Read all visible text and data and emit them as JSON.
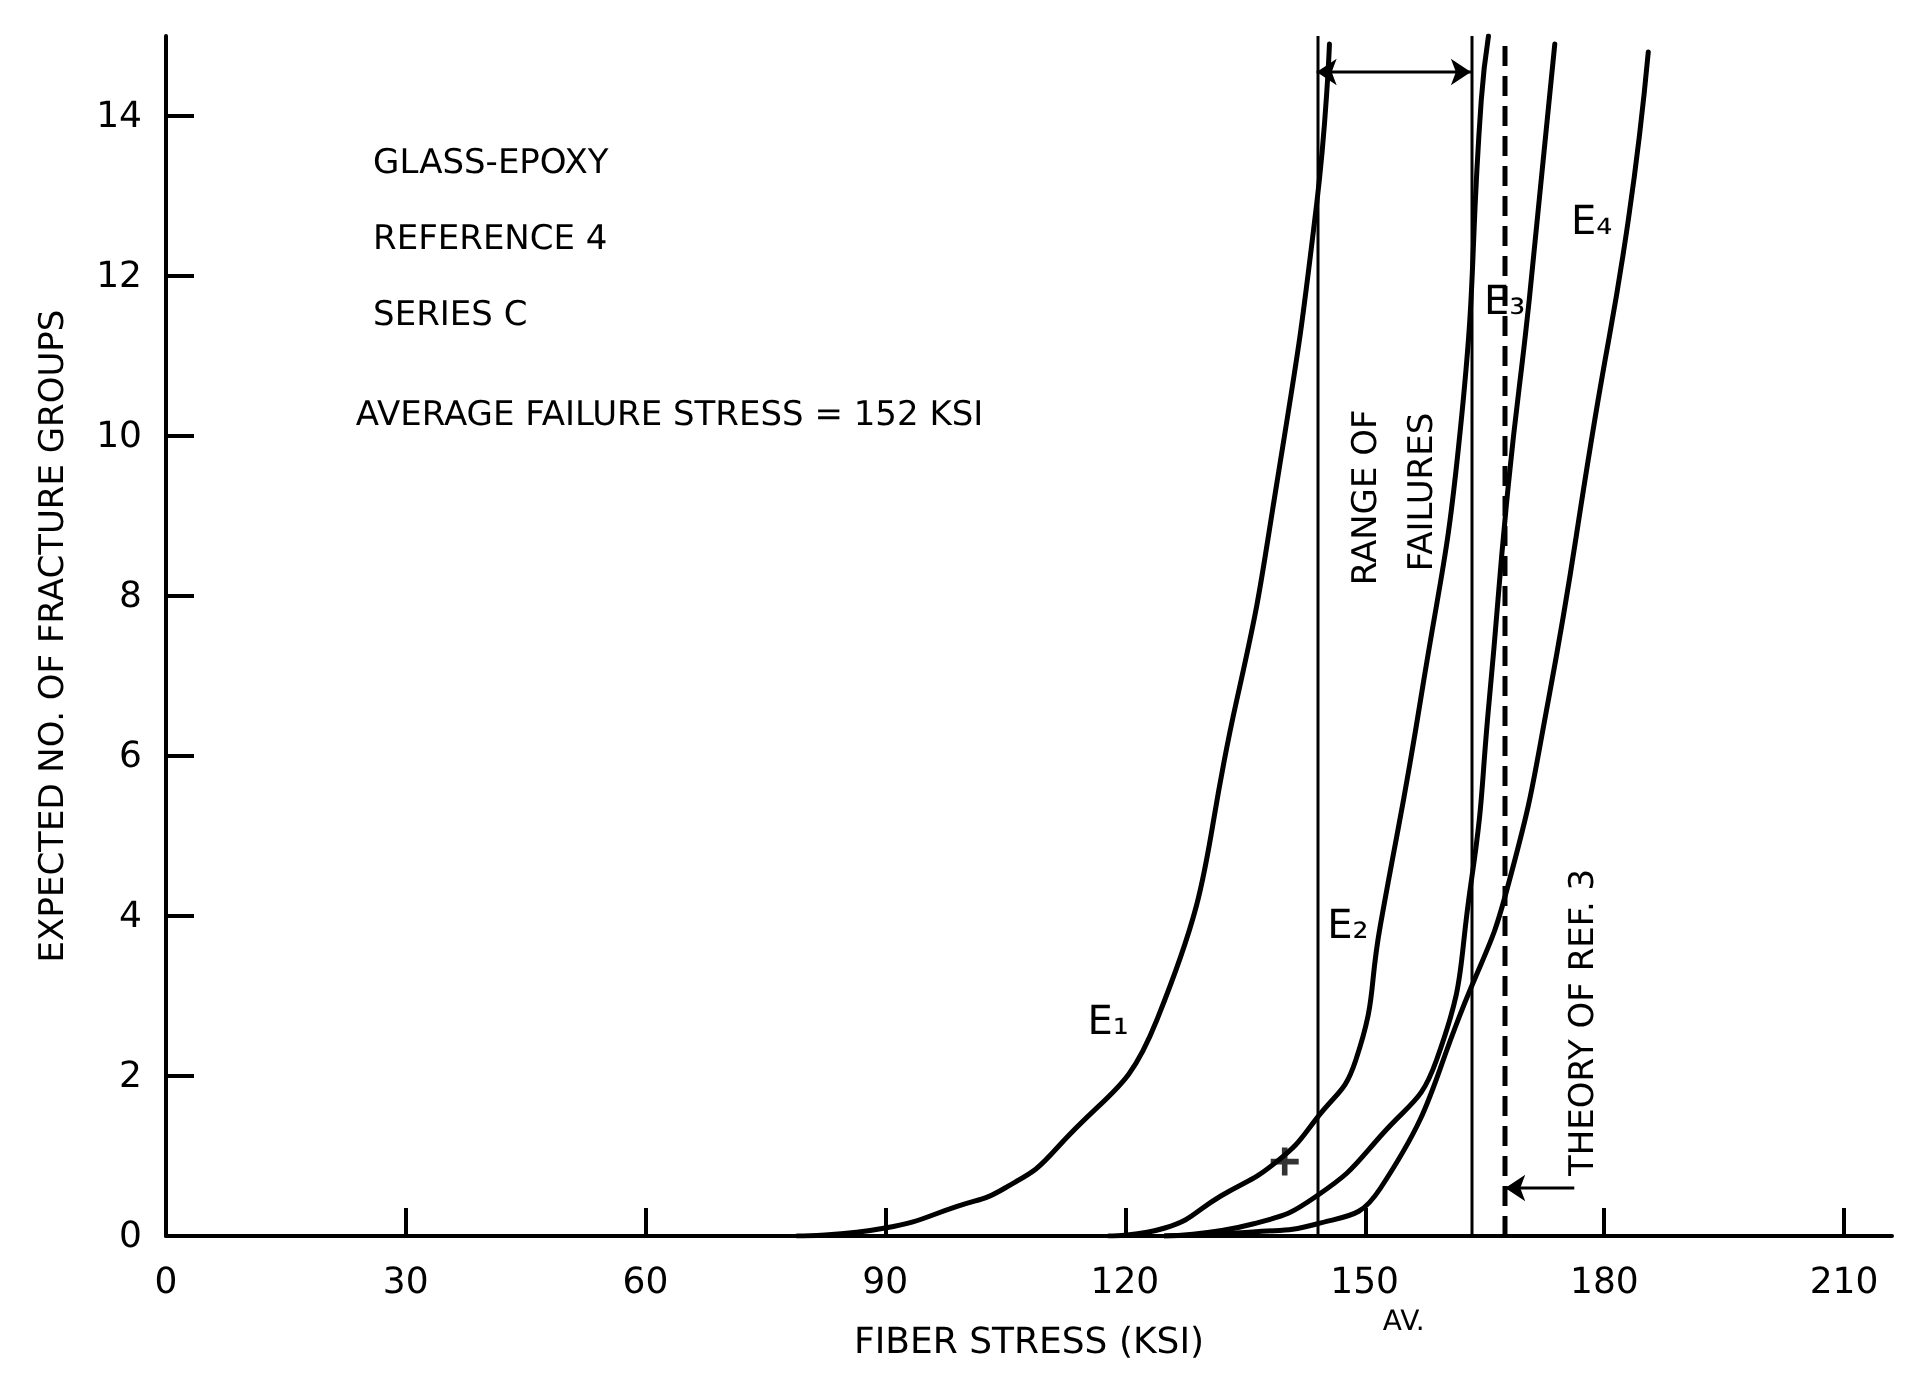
{
  "chart_data": {
    "type": "line",
    "xlabel": "FIBER STRESS (KSI)",
    "ylabel": "EXPECTED NO. OF FRACTURE GROUPS",
    "xlim": [
      0,
      216
    ],
    "xticks": [
      0,
      30,
      60,
      90,
      120,
      150,
      180,
      210
    ],
    "ylim": [
      0,
      15
    ],
    "yticks": [
      0,
      2,
      4,
      6,
      8,
      10,
      12,
      14
    ],
    "grid": false,
    "legend": false,
    "marker": "none",
    "line_style": "solid",
    "series": [
      {
        "name": "E₁",
        "color": "#000000",
        "x": [
          79,
          90,
          99,
          105,
          111.5,
          124,
          134,
          139,
          144,
          145.6
        ],
        "values": [
          0,
          0.1,
          0.37,
          0.6,
          1.1,
          2.7,
          6.7,
          9.4,
          12.9,
          14.9
        ]
      },
      {
        "name": "E₂",
        "color": "#000000",
        "x": [
          118,
          125,
          132,
          139,
          144,
          148.9,
          152,
          157,
          162,
          164.6,
          165.5
        ],
        "values": [
          0,
          0.1,
          0.5,
          0.93,
          1.47,
          2.2,
          3.9,
          6.7,
          10.1,
          14.2,
          15
        ]
      },
      {
        "name": "E₃",
        "color": "#000000",
        "x": [
          125,
          136,
          144,
          152,
          159,
          163.3,
          165.6,
          168,
          170.6,
          173.8
        ],
        "values": [
          0,
          0.15,
          0.5,
          1.25,
          2.2,
          4.4,
          6.7,
          9.4,
          11.7,
          14.9
        ]
      },
      {
        "name": "E₄",
        "color": "#000000",
        "x": [
          125,
          136,
          144,
          152,
          163.3,
          168,
          173,
          178.8,
          183,
          185.5
        ],
        "values": [
          0,
          0.05,
          0.15,
          0.6,
          3.1,
          4.4,
          6.7,
          10.2,
          12.7,
          14.8
        ]
      },
      {
        "type": "scatter",
        "marker": "cross",
        "color": "#000000",
        "x": [
          140
        ],
        "values": [
          0.93
        ]
      }
    ],
    "ref_lines": [
      {
        "axis": "x",
        "value": 144,
        "color": "#000000",
        "line_style": "solid"
      },
      {
        "axis": "x",
        "value": 163.3,
        "color": "#000000",
        "line_style": "solid"
      },
      {
        "axis": "x",
        "value": 167.6,
        "label": "THEORY OF REF. 3",
        "color": "#000000",
        "line_style": "dashed"
      }
    ],
    "annotations": [
      "GLASS-EPOXY",
      "REFERENCE 4",
      "SERIES C",
      "AVERAGE FAILURE STRESS = 152 KSI",
      "RANGE OF FAILURES",
      "AV."
    ]
  }
}
